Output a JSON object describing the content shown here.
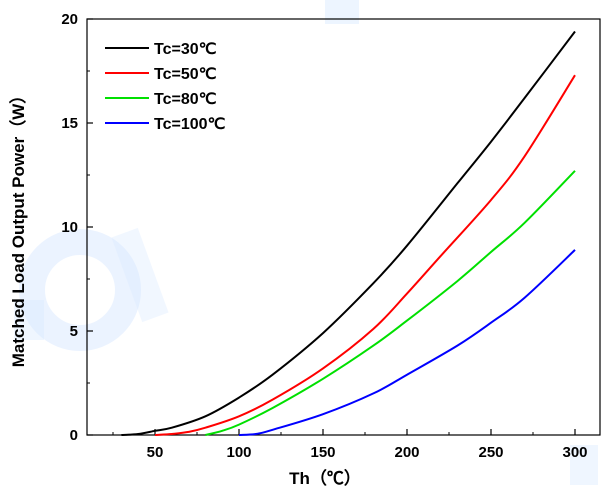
{
  "chart_data": {
    "type": "line",
    "title": "",
    "xlabel": "Th（℃）",
    "ylabel": "Matched Load Output Power（W）",
    "xlim": [
      0,
      310
    ],
    "ylim": [
      0,
      20
    ],
    "xticks": [
      50,
      100,
      150,
      200,
      250,
      300
    ],
    "yticks": [
      0,
      5,
      10,
      15,
      20
    ],
    "grid": false,
    "legend_position": "top-left",
    "series": [
      {
        "name": "Tc=30℃",
        "color": "#000000",
        "x": [
          30,
          40,
          50,
          60,
          80,
          100,
          120,
          150,
          180,
          200,
          230,
          250,
          270,
          300
        ],
        "y": [
          0,
          0.05,
          0.2,
          0.35,
          0.9,
          1.8,
          2.9,
          4.9,
          7.3,
          9.1,
          12.1,
          14.1,
          16.2,
          19.4
        ]
      },
      {
        "name": "Tc=50℃",
        "color": "#ff0000",
        "x": [
          50,
          60,
          70,
          80,
          100,
          120,
          150,
          180,
          200,
          220,
          250,
          270,
          300
        ],
        "y": [
          0,
          0.05,
          0.15,
          0.35,
          0.9,
          1.7,
          3.2,
          5.1,
          6.8,
          8.6,
          11.3,
          13.4,
          17.3
        ]
      },
      {
        "name": "Tc=80℃",
        "color": "#00e000",
        "x": [
          80,
          90,
          100,
          120,
          150,
          180,
          200,
          230,
          250,
          270,
          300
        ],
        "y": [
          0,
          0.2,
          0.5,
          1.3,
          2.7,
          4.3,
          5.5,
          7.4,
          8.8,
          10.2,
          12.7
        ]
      },
      {
        "name": "Tc=100℃",
        "color": "#0000ff",
        "x": [
          100,
          110,
          120,
          150,
          180,
          200,
          230,
          250,
          270,
          300
        ],
        "y": [
          0,
          0.05,
          0.25,
          1.0,
          2.0,
          2.9,
          4.3,
          5.4,
          6.6,
          8.9
        ]
      }
    ]
  }
}
